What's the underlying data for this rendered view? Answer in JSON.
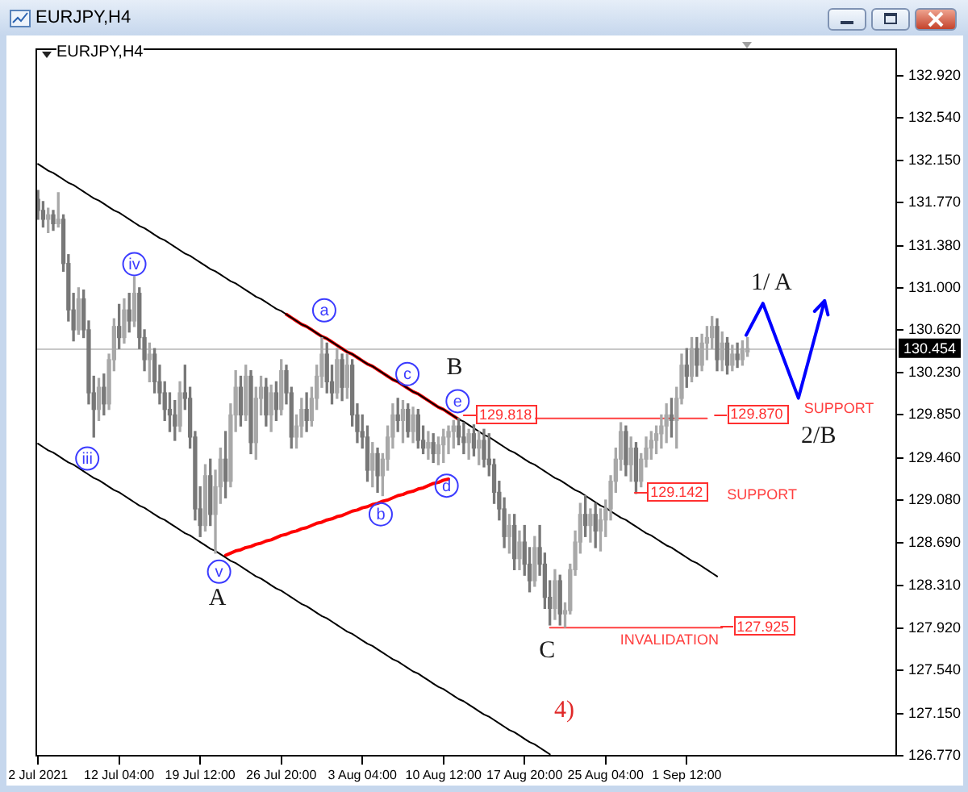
{
  "chart_data": {
    "type": "candlestick",
    "title": "EURJPY,H4",
    "subtitle": "EURJPY,H4",
    "categories": [
      "2 Jul 2021",
      null,
      null,
      null,
      null,
      null,
      null,
      null,
      null,
      null,
      null,
      null,
      null,
      null,
      null,
      null,
      "12 Jul 04:00",
      null,
      null,
      null,
      null,
      null,
      null,
      null,
      null,
      null,
      null,
      null,
      null,
      null,
      null,
      null,
      "19 Jul 12:00",
      null,
      null,
      null,
      null,
      null,
      null,
      null,
      null,
      null,
      null,
      null,
      null,
      null,
      null,
      null,
      "26 Jul 20:00",
      null,
      null,
      null,
      null,
      null,
      null,
      null,
      null,
      null,
      null,
      null,
      null,
      null,
      null,
      null,
      "3 Aug 04:00",
      null,
      null,
      null,
      null,
      null,
      null,
      null,
      null,
      null,
      null,
      null,
      null,
      null,
      null,
      null,
      "10 Aug 12:00",
      null,
      null,
      null,
      null,
      null,
      null,
      null,
      null,
      null,
      null,
      null,
      null,
      null,
      null,
      null,
      "17 Aug 20:00",
      null,
      null,
      null,
      null,
      null,
      null,
      null,
      null,
      null,
      null,
      null,
      null,
      null,
      null,
      null,
      "25 Aug 04:00",
      null,
      null,
      null,
      null,
      null,
      null,
      null,
      null,
      null,
      null,
      null,
      null,
      null,
      null,
      null,
      "1 Sep 12:00",
      null,
      null,
      null,
      null,
      null,
      null,
      null,
      null,
      null,
      null,
      null,
      null,
      null,
      null,
      null,
      null,
      null,
      null,
      null,
      null,
      null,
      null,
      null,
      null,
      null,
      null,
      null,
      null,
      null,
      null,
      null,
      null,
      null,
      null,
      null,
      null,
      null,
      null,
      null,
      null,
      null
    ],
    "ohlc": [
      [
        131.8,
        131.88,
        131.62,
        131.7
      ],
      [
        131.7,
        131.78,
        131.55,
        131.62
      ],
      [
        131.62,
        131.72,
        131.5,
        131.66
      ],
      [
        131.66,
        131.7,
        131.52,
        131.58
      ],
      [
        131.58,
        131.86,
        131.55,
        131.62
      ],
      [
        131.62,
        131.66,
        131.15,
        131.22
      ],
      [
        131.22,
        131.3,
        130.7,
        130.8
      ],
      [
        130.8,
        130.95,
        130.52,
        130.62
      ],
      [
        130.62,
        131.0,
        130.58,
        130.9
      ],
      [
        130.9,
        130.98,
        130.55,
        130.62
      ],
      [
        130.62,
        130.7,
        129.95,
        130.05
      ],
      [
        130.05,
        130.2,
        129.65,
        129.9
      ],
      [
        129.9,
        130.18,
        129.8,
        130.1
      ],
      [
        130.1,
        130.22,
        129.85,
        129.95
      ],
      [
        129.95,
        130.4,
        129.9,
        130.35
      ],
      [
        130.35,
        130.72,
        130.25,
        130.65
      ],
      [
        130.65,
        130.85,
        130.45,
        130.55
      ],
      [
        130.55,
        130.9,
        130.5,
        130.8
      ],
      [
        130.8,
        130.95,
        130.6,
        130.7
      ],
      [
        130.7,
        131.1,
        130.65,
        130.95
      ],
      [
        130.95,
        131.0,
        130.45,
        130.55
      ],
      [
        130.55,
        130.62,
        130.25,
        130.35
      ],
      [
        130.35,
        130.5,
        130.15,
        130.4
      ],
      [
        130.4,
        130.45,
        130.05,
        130.15
      ],
      [
        130.15,
        130.3,
        129.95,
        130.05
      ],
      [
        130.05,
        130.15,
        129.8,
        129.9
      ],
      [
        129.9,
        130.05,
        129.7,
        129.85
      ],
      [
        129.85,
        129.98,
        129.62,
        129.75
      ],
      [
        129.75,
        130.15,
        129.7,
        130.05
      ],
      [
        130.05,
        130.3,
        129.9,
        130.0
      ],
      [
        130.0,
        130.1,
        129.55,
        129.65
      ],
      [
        129.65,
        129.7,
        128.9,
        129.0
      ],
      [
        129.0,
        129.2,
        128.75,
        128.85
      ],
      [
        128.85,
        129.4,
        128.8,
        129.3
      ],
      [
        129.3,
        129.45,
        128.85,
        128.95
      ],
      [
        128.95,
        129.35,
        128.6,
        129.2
      ],
      [
        129.2,
        129.55,
        129.05,
        129.45
      ],
      [
        129.45,
        129.7,
        129.1,
        129.25
      ],
      [
        129.25,
        129.95,
        129.2,
        129.85
      ],
      [
        129.85,
        130.25,
        129.7,
        130.1
      ],
      [
        130.1,
        130.2,
        129.75,
        129.85
      ],
      [
        129.85,
        130.3,
        129.8,
        130.2
      ],
      [
        130.2,
        130.25,
        129.5,
        129.6
      ],
      [
        129.6,
        130.1,
        129.45,
        130.0
      ],
      [
        130.0,
        130.2,
        129.85,
        130.1
      ],
      [
        130.1,
        130.18,
        129.75,
        129.85
      ],
      [
        129.85,
        130.12,
        129.7,
        130.05
      ],
      [
        130.05,
        130.15,
        129.8,
        129.9
      ],
      [
        129.9,
        130.35,
        129.85,
        130.25
      ],
      [
        130.25,
        130.3,
        129.95,
        130.05
      ],
      [
        130.05,
        130.1,
        129.55,
        129.65
      ],
      [
        129.65,
        129.85,
        129.55,
        129.75
      ],
      [
        129.75,
        130.0,
        129.65,
        129.9
      ],
      [
        129.9,
        130.05,
        129.7,
        129.8
      ],
      [
        129.8,
        130.1,
        129.75,
        130.0
      ],
      [
        130.0,
        130.3,
        129.9,
        130.2
      ],
      [
        130.2,
        130.55,
        130.1,
        130.4
      ],
      [
        130.4,
        130.5,
        130.05,
        130.15
      ],
      [
        130.15,
        130.3,
        129.95,
        130.05
      ],
      [
        130.05,
        130.45,
        130.0,
        130.35
      ],
      [
        130.35,
        130.4,
        129.98,
        130.1
      ],
      [
        130.1,
        130.4,
        130.0,
        130.3
      ],
      [
        130.3,
        130.35,
        129.75,
        129.85
      ],
      [
        129.85,
        129.95,
        129.6,
        129.7
      ],
      [
        129.7,
        129.85,
        129.55,
        129.65
      ],
      [
        129.65,
        129.75,
        129.25,
        129.35
      ],
      [
        129.35,
        129.6,
        129.2,
        129.5
      ],
      [
        129.5,
        129.55,
        129.15,
        129.3
      ],
      [
        129.3,
        129.5,
        129.12,
        129.45
      ],
      [
        129.45,
        129.75,
        129.35,
        129.65
      ],
      [
        129.65,
        129.95,
        129.55,
        129.85
      ],
      [
        129.85,
        130.0,
        129.7,
        129.8
      ],
      [
        129.8,
        129.98,
        129.6,
        129.9
      ],
      [
        129.9,
        129.95,
        129.65,
        129.7
      ],
      [
        129.7,
        129.92,
        129.6,
        129.85
      ],
      [
        129.85,
        129.9,
        129.55,
        129.62
      ],
      [
        129.62,
        129.75,
        129.5,
        129.55
      ],
      [
        129.55,
        129.7,
        129.45,
        129.6
      ],
      [
        129.6,
        129.68,
        129.42,
        129.5
      ],
      [
        129.5,
        129.65,
        129.4,
        129.58
      ],
      [
        129.58,
        129.72,
        129.42,
        129.65
      ],
      [
        129.65,
        129.75,
        129.5,
        129.7
      ],
      [
        129.7,
        129.8,
        129.55,
        129.75
      ],
      [
        129.75,
        129.82,
        129.58,
        129.65
      ],
      [
        129.65,
        129.78,
        129.5,
        129.6
      ],
      [
        129.6,
        129.72,
        129.45,
        129.68
      ],
      [
        129.68,
        129.76,
        129.48,
        129.55
      ],
      [
        129.55,
        129.7,
        129.4,
        129.62
      ],
      [
        129.62,
        129.72,
        129.38,
        129.45
      ],
      [
        129.45,
        129.68,
        129.3,
        129.4
      ],
      [
        129.4,
        129.45,
        129.05,
        129.15
      ],
      [
        129.15,
        129.25,
        128.9,
        129.0
      ],
      [
        129.0,
        129.1,
        128.65,
        128.75
      ],
      [
        128.75,
        128.95,
        128.6,
        128.85
      ],
      [
        128.85,
        128.95,
        128.45,
        128.55
      ],
      [
        128.55,
        128.8,
        128.45,
        128.7
      ],
      [
        128.7,
        128.85,
        128.4,
        128.5
      ],
      [
        128.5,
        128.65,
        128.25,
        128.35
      ],
      [
        128.35,
        128.75,
        128.3,
        128.65
      ],
      [
        128.65,
        128.85,
        128.4,
        128.5
      ],
      [
        128.5,
        128.6,
        128.1,
        128.2
      ],
      [
        128.2,
        128.35,
        127.95,
        128.1
      ],
      [
        128.1,
        128.45,
        128.0,
        128.35
      ],
      [
        128.35,
        128.4,
        127.95,
        128.05
      ],
      [
        128.05,
        128.15,
        127.93,
        128.08
      ],
      [
        128.08,
        128.5,
        128.05,
        128.45
      ],
      [
        128.45,
        128.8,
        128.4,
        128.7
      ],
      [
        128.7,
        129.05,
        128.6,
        128.95
      ],
      [
        128.95,
        129.12,
        128.75,
        128.85
      ],
      [
        128.85,
        129.0,
        128.7,
        128.95
      ],
      [
        128.95,
        129.05,
        128.65,
        128.8
      ],
      [
        128.8,
        129.0,
        128.62,
        128.9
      ],
      [
        128.9,
        129.08,
        128.75,
        129.0
      ],
      [
        129.0,
        129.3,
        128.9,
        129.25
      ],
      [
        129.25,
        129.55,
        129.15,
        129.45
      ],
      [
        129.45,
        129.78,
        129.35,
        129.7
      ],
      [
        129.7,
        129.75,
        129.3,
        129.4
      ],
      [
        129.4,
        129.65,
        129.25,
        129.55
      ],
      [
        129.55,
        129.6,
        129.14,
        129.25
      ],
      [
        129.25,
        129.5,
        129.2,
        129.45
      ],
      [
        129.45,
        129.65,
        129.38,
        129.55
      ],
      [
        129.55,
        129.7,
        129.45,
        129.62
      ],
      [
        129.62,
        129.75,
        129.5,
        129.68
      ],
      [
        129.68,
        129.85,
        129.55,
        129.75
      ],
      [
        129.75,
        129.95,
        129.6,
        129.85
      ],
      [
        129.85,
        130.0,
        129.65,
        129.8
      ],
      [
        129.8,
        130.1,
        129.55,
        130.0
      ],
      [
        130.0,
        130.4,
        129.95,
        130.3
      ],
      [
        130.3,
        130.45,
        130.1,
        130.2
      ],
      [
        130.2,
        130.55,
        130.15,
        130.45
      ],
      [
        130.45,
        130.55,
        130.2,
        130.3
      ],
      [
        130.3,
        130.58,
        130.25,
        130.5
      ],
      [
        130.5,
        130.65,
        130.35,
        130.55
      ],
      [
        130.55,
        130.74,
        130.45,
        130.65
      ],
      [
        130.65,
        130.72,
        130.25,
        130.35
      ],
      [
        130.35,
        130.6,
        130.25,
        130.5
      ],
      [
        130.5,
        130.55,
        130.22,
        130.3
      ],
      [
        130.3,
        130.48,
        130.25,
        130.4
      ],
      [
        130.4,
        130.5,
        130.28,
        130.35
      ],
      [
        130.35,
        130.52,
        130.3,
        130.45
      ],
      [
        130.42,
        130.55,
        130.38,
        130.45
      ],
      null,
      null,
      null,
      null,
      null,
      null,
      null,
      null,
      null,
      null,
      null,
      null,
      null,
      null,
      null,
      null,
      null,
      null,
      null,
      null,
      null,
      null,
      null,
      null,
      null,
      null,
      null,
      null,
      null
    ],
    "colors": [
      "#787878",
      "#787878",
      "#a8a8a8",
      "#787878",
      "#a8a8a8",
      "#787878",
      "#787878",
      "#787878",
      "#a8a8a8",
      "#787878",
      "#787878",
      "#787878",
      "#a8a8a8",
      "#787878",
      "#a8a8a8",
      "#a8a8a8",
      "#787878",
      "#a8a8a8",
      "#787878",
      "#a8a8a8",
      "#787878",
      "#787878",
      "#a8a8a8",
      "#787878",
      "#787878",
      "#787878",
      "#787878",
      "#787878",
      "#a8a8a8",
      "#787878",
      "#787878",
      "#787878",
      "#787878",
      "#a8a8a8",
      "#787878",
      "#a8a8a8",
      "#a8a8a8",
      "#787878",
      "#a8a8a8",
      "#a8a8a8",
      "#787878",
      "#a8a8a8",
      "#787878",
      "#a8a8a8",
      "#a8a8a8",
      "#787878",
      "#a8a8a8",
      "#787878",
      "#a8a8a8",
      "#787878",
      "#787878",
      "#a8a8a8",
      "#a8a8a8",
      "#787878",
      "#a8a8a8",
      "#a8a8a8",
      "#a8a8a8",
      "#787878",
      "#787878",
      "#a8a8a8",
      "#787878",
      "#a8a8a8",
      "#787878",
      "#787878",
      "#787878",
      "#787878",
      "#a8a8a8",
      "#787878",
      "#a8a8a8",
      "#a8a8a8",
      "#a8a8a8",
      "#787878",
      "#a8a8a8",
      "#787878",
      "#a8a8a8",
      "#787878",
      "#787878",
      "#a8a8a8",
      "#787878",
      "#a8a8a8",
      "#a8a8a8",
      "#a8a8a8",
      "#a8a8a8",
      "#787878",
      "#787878",
      "#a8a8a8",
      "#787878",
      "#a8a8a8",
      "#787878",
      "#787878",
      "#787878",
      "#787878",
      "#787878",
      "#a8a8a8",
      "#787878",
      "#a8a8a8",
      "#787878",
      "#787878",
      "#a8a8a8",
      "#787878",
      "#787878",
      "#787878",
      "#a8a8a8",
      "#787878",
      "#a8a8a8",
      "#a8a8a8",
      "#a8a8a8",
      "#a8a8a8",
      "#787878",
      "#a8a8a8",
      "#787878",
      "#a8a8a8",
      "#a8a8a8",
      "#a8a8a8",
      "#a8a8a8",
      "#a8a8a8",
      "#787878",
      "#a8a8a8",
      "#787878",
      "#a8a8a8",
      "#a8a8a8",
      "#a8a8a8",
      "#a8a8a8",
      "#a8a8a8",
      "#a8a8a8",
      "#787878",
      "#a8a8a8",
      "#a8a8a8",
      "#787878",
      "#a8a8a8",
      "#787878",
      "#a8a8a8",
      "#a8a8a8",
      "#a8a8a8",
      "#787878",
      "#a8a8a8",
      "#787878",
      "#a8a8a8",
      "#787878",
      "#a8a8a8",
      "#a8a8a8",
      null,
      null,
      null,
      null,
      null,
      null,
      null,
      null,
      null,
      null,
      null,
      null,
      null,
      null,
      null,
      null,
      null,
      null,
      null,
      null,
      null,
      null,
      null,
      null,
      null,
      null,
      null,
      null,
      null
    ],
    "series": [
      {
        "type": "line",
        "color": "#000000",
        "values": [
          132.12,
          132.09,
          132.06,
          132.04,
          132.01,
          131.98,
          131.95,
          131.93,
          131.9,
          131.87,
          131.84,
          131.81,
          131.79,
          131.76,
          131.73,
          131.7,
          131.68,
          131.65,
          131.62,
          131.59,
          131.56,
          131.54,
          131.51,
          131.48,
          131.45,
          131.43,
          131.4,
          131.37,
          131.34,
          131.31,
          131.29,
          131.26,
          131.23,
          131.2,
          131.17,
          131.15,
          131.12,
          131.09,
          131.06,
          131.04,
          131.01,
          130.98,
          130.95,
          130.92,
          130.9,
          130.87,
          130.84,
          130.81,
          130.79,
          130.76,
          130.73,
          130.7,
          130.67,
          130.65,
          130.62,
          130.59,
          130.56,
          130.54,
          130.51,
          130.48,
          130.45,
          130.42,
          130.4,
          130.37,
          130.34,
          130.31,
          130.29,
          130.26,
          130.23,
          130.2,
          130.17,
          130.15,
          130.12,
          130.09,
          130.06,
          130.04,
          130.01,
          129.98,
          129.95,
          129.92,
          129.9,
          129.87,
          129.84,
          129.81,
          129.79,
          129.76,
          129.73,
          129.7,
          129.67,
          129.65,
          129.62,
          129.59,
          129.56,
          129.53,
          129.51,
          129.48,
          129.45,
          129.42,
          129.4,
          129.37,
          129.34,
          129.31,
          129.28,
          129.26,
          129.23,
          129.2,
          129.17,
          129.15,
          129.12,
          129.09,
          129.06,
          129.03,
          129.01,
          128.98,
          128.95,
          128.92,
          128.9,
          128.87,
          128.84,
          128.81,
          128.78,
          128.76,
          128.73,
          128.7,
          128.67,
          128.65,
          128.62,
          128.59,
          128.56,
          128.53,
          128.51,
          128.48,
          128.45,
          128.42,
          128.39,
          null,
          null,
          null,
          null,
          null,
          null,
          null,
          null,
          null,
          null,
          null,
          null,
          null,
          null,
          null,
          null,
          null,
          null,
          null,
          null,
          null,
          null,
          null,
          null,
          null,
          null,
          null,
          null,
          null,
          null,
          null,
          null,
          null,
          null,
          null
        ]
      },
      {
        "type": "line",
        "color": "#000000",
        "values": [
          129.59,
          129.56,
          129.53,
          129.51,
          129.48,
          129.45,
          129.42,
          129.4,
          129.37,
          129.34,
          129.31,
          129.28,
          129.26,
          129.23,
          129.2,
          129.17,
          129.15,
          129.12,
          129.09,
          129.06,
          129.03,
          129.01,
          128.98,
          128.95,
          128.92,
          128.9,
          128.87,
          128.84,
          128.81,
          128.78,
          128.76,
          128.73,
          128.7,
          128.67,
          128.64,
          128.62,
          128.59,
          128.56,
          128.53,
          128.51,
          128.48,
          128.45,
          128.42,
          128.39,
          128.37,
          128.34,
          128.31,
          128.28,
          128.26,
          128.23,
          128.2,
          128.17,
          128.14,
          128.12,
          128.09,
          128.06,
          128.03,
          128.01,
          127.98,
          127.95,
          127.92,
          127.89,
          127.87,
          127.84,
          127.81,
          127.78,
          127.76,
          127.73,
          127.7,
          127.67,
          127.64,
          127.62,
          127.59,
          127.56,
          127.53,
          127.51,
          127.48,
          127.45,
          127.42,
          127.39,
          127.37,
          127.34,
          127.31,
          127.28,
          127.26,
          127.23,
          127.2,
          127.17,
          127.14,
          127.12,
          127.09,
          127.06,
          127.03,
          127.0,
          126.98,
          126.95,
          126.92,
          126.89,
          126.87,
          126.84,
          126.81,
          126.78,
          null,
          null,
          null,
          null,
          null,
          null,
          null,
          null,
          null,
          null,
          null,
          null,
          null,
          null,
          null,
          null,
          null,
          null,
          null,
          null,
          null,
          null,
          null,
          null,
          null,
          null,
          null,
          null,
          null,
          null,
          null,
          null,
          null,
          null,
          null,
          null,
          null,
          null,
          null,
          null,
          null,
          null,
          null,
          null,
          null,
          null,
          null,
          null,
          null,
          null,
          null,
          null,
          null,
          null,
          null,
          null,
          null,
          null,
          null,
          null,
          null,
          null,
          null,
          null,
          null,
          null,
          null,
          null
        ]
      },
      {
        "type": "line",
        "color": "#ff0000",
        "values": [
          null,
          null,
          null,
          null,
          null,
          null,
          null,
          null,
          null,
          null,
          null,
          null,
          null,
          null,
          null,
          null,
          null,
          null,
          null,
          null,
          null,
          null,
          null,
          null,
          null,
          null,
          null,
          null,
          null,
          null,
          null,
          null,
          null,
          null,
          null,
          null,
          null,
          null,
          null,
          null,
          null,
          null,
          null,
          null,
          null,
          null,
          null,
          null,
          null,
          130.76,
          130.73,
          130.7,
          130.67,
          130.65,
          130.62,
          130.59,
          130.56,
          130.54,
          130.51,
          130.48,
          130.45,
          130.42,
          130.4,
          130.37,
          130.34,
          130.31,
          130.29,
          130.26,
          130.23,
          130.2,
          130.17,
          130.15,
          130.12,
          130.09,
          130.06,
          130.04,
          130.01,
          129.98,
          129.95,
          129.92,
          129.9,
          129.87,
          129.84,
          129.81,
          null,
          null,
          null,
          null,
          null,
          null,
          null,
          null,
          null,
          null,
          null,
          null,
          null,
          null,
          null,
          null,
          null,
          null,
          null,
          null,
          null,
          null,
          null,
          null,
          null,
          null,
          null,
          null,
          null,
          null,
          null,
          null,
          null,
          null,
          null,
          null,
          null,
          null,
          null,
          null,
          null,
          null,
          null,
          null,
          null,
          null,
          null,
          null,
          null,
          null,
          null,
          null,
          null,
          null,
          null,
          null,
          null,
          null,
          null,
          null,
          null,
          null,
          null,
          null,
          null,
          null,
          null,
          null,
          null,
          null,
          null,
          null,
          null,
          null,
          null,
          null,
          null,
          null,
          null,
          null,
          null,
          null,
          null,
          null,
          null,
          null
        ]
      },
      {
        "type": "line",
        "color": "#ff0000",
        "values": [
          null,
          null,
          null,
          null,
          null,
          null,
          null,
          null,
          null,
          null,
          null,
          null,
          null,
          null,
          null,
          null,
          null,
          null,
          null,
          null,
          null,
          null,
          null,
          null,
          null,
          null,
          null,
          null,
          null,
          null,
          null,
          null,
          null,
          null,
          null,
          null,
          null,
          128.58,
          128.6,
          128.62,
          128.63,
          128.65,
          128.66,
          128.68,
          128.69,
          128.71,
          128.72,
          128.74,
          128.76,
          128.77,
          128.79,
          128.8,
          128.82,
          128.83,
          128.85,
          128.87,
          128.88,
          128.9,
          128.91,
          128.93,
          128.94,
          128.96,
          128.98,
          128.99,
          129.01,
          129.02,
          129.04,
          129.05,
          129.07,
          129.08,
          129.1,
          129.12,
          129.13,
          129.15,
          129.16,
          129.18,
          129.19,
          129.21,
          129.23,
          129.24,
          129.26,
          129.27,
          null,
          null,
          null,
          null,
          null,
          null,
          null,
          null,
          null,
          null,
          null,
          null,
          null,
          null,
          null,
          null,
          null,
          null,
          null,
          null,
          null,
          null,
          null,
          null,
          null,
          null,
          null,
          null,
          null,
          null,
          null,
          null,
          null,
          null,
          null,
          null,
          null,
          null,
          null,
          null,
          null,
          null,
          null,
          null,
          null,
          null,
          null,
          null,
          null,
          null,
          null,
          null,
          null,
          null,
          null,
          null,
          null,
          null,
          null,
          null,
          null,
          null,
          null,
          null,
          null,
          null,
          null,
          null,
          null,
          null,
          null,
          null,
          null,
          null,
          null,
          null,
          null,
          null,
          null,
          null,
          null,
          null,
          null,
          null,
          null,
          null,
          null,
          null
        ]
      },
      {
        "type": "line",
        "color": "#ff4040",
        "values": [
          null,
          null,
          null,
          null,
          null,
          null,
          null,
          null,
          null,
          null,
          null,
          null,
          null,
          null,
          null,
          null,
          null,
          null,
          null,
          null,
          null,
          null,
          null,
          null,
          null,
          null,
          null,
          null,
          null,
          null,
          null,
          null,
          null,
          null,
          null,
          null,
          null,
          null,
          null,
          null,
          null,
          null,
          null,
          null,
          null,
          null,
          null,
          null,
          null,
          null,
          null,
          null,
          null,
          null,
          null,
          null,
          null,
          null,
          null,
          null,
          null,
          null,
          null,
          null,
          null,
          null,
          null,
          null,
          null,
          null,
          null,
          null,
          null,
          null,
          null,
          null,
          null,
          null,
          null,
          null,
          null,
          null,
          null,
          null,
          null,
          null,
          null,
          null,
          null,
          null,
          null,
          null,
          null,
          null,
          null,
          null,
          null,
          null,
          129.818,
          129.818,
          129.818,
          129.818,
          129.818,
          129.818,
          129.818,
          129.818,
          129.818,
          129.818,
          129.818,
          129.818,
          129.818,
          129.818,
          129.818,
          129.818,
          129.818,
          129.818,
          129.818,
          129.818,
          129.818,
          129.818,
          129.818,
          129.818,
          129.818,
          129.818,
          129.818,
          129.818,
          129.818,
          129.818,
          129.818,
          129.818,
          129.818,
          129.818,
          129.818,
          null,
          null,
          null,
          null,
          null,
          null,
          null,
          null,
          null,
          null,
          null,
          null,
          null,
          null,
          null,
          null,
          null,
          null,
          null,
          null,
          null,
          null,
          null,
          null,
          null,
          null,
          null,
          null,
          null,
          null,
          null,
          null,
          null,
          null,
          null,
          null,
          null
        ]
      },
      {
        "type": "line",
        "color": "#ff4040",
        "values": [
          null,
          null,
          null,
          null,
          null,
          null,
          null,
          null,
          null,
          null,
          null,
          null,
          null,
          null,
          null,
          null,
          null,
          null,
          null,
          null,
          null,
          null,
          null,
          null,
          null,
          null,
          null,
          null,
          null,
          null,
          null,
          null,
          null,
          null,
          null,
          null,
          null,
          null,
          null,
          null,
          null,
          null,
          null,
          null,
          null,
          null,
          null,
          null,
          null,
          null,
          null,
          null,
          null,
          null,
          null,
          null,
          null,
          null,
          null,
          null,
          null,
          null,
          null,
          null,
          null,
          null,
          null,
          null,
          null,
          null,
          null,
          null,
          null,
          null,
          null,
          null,
          null,
          null,
          null,
          null,
          null,
          null,
          null,
          null,
          null,
          null,
          null,
          null,
          null,
          null,
          null,
          null,
          null,
          null,
          null,
          null,
          null,
          null,
          null,
          null,
          null,
          127.925,
          127.925,
          127.925,
          127.925,
          127.925,
          127.925,
          127.925,
          127.925,
          127.925,
          127.925,
          127.925,
          127.925,
          127.925,
          127.925,
          127.925,
          127.925,
          127.925,
          127.925,
          127.925,
          127.925,
          127.925,
          127.925,
          127.925,
          127.925,
          127.925,
          127.925,
          127.925,
          127.925,
          127.925,
          127.925,
          127.925,
          127.925,
          127.925,
          127.925,
          127.925,
          null,
          null,
          null,
          null,
          null,
          null,
          null,
          null,
          null,
          null,
          null,
          null,
          null,
          null,
          null,
          null,
          null,
          null,
          null,
          null,
          null,
          null,
          null,
          null,
          null,
          null,
          null,
          null,
          null,
          null,
          null,
          null,
          null,
          null
        ]
      }
    ],
    "ref_lines": [
      {
        "axis": "y",
        "value": 130.454,
        "label": "130.454",
        "color": "#c8c8c8"
      }
    ],
    "annotations": [
      "iii",
      "iv",
      "v",
      "a",
      "b",
      "c",
      "d",
      "e",
      "A",
      "B",
      "C",
      "1/ A",
      "2/B",
      "4)",
      "SUPPORT",
      "SUPPORT",
      "INVALIDATION",
      "129.818",
      "129.870",
      "129.142",
      "127.925"
    ],
    "ylim": [
      126.76,
      133.16
    ],
    "yticks": [
      {
        "value": 132.92,
        "label": "132.920"
      },
      {
        "value": 132.54,
        "label": "132.540"
      },
      {
        "value": 132.15,
        "label": "132.150"
      },
      {
        "value": 131.77,
        "label": "131.770"
      },
      {
        "value": 131.38,
        "label": "131.380"
      },
      {
        "value": 131,
        "label": "131.000"
      },
      {
        "value": 130.62,
        "label": "130.620"
      },
      {
        "value": 130.23,
        "label": "130.230"
      },
      {
        "value": 129.85,
        "label": "129.850"
      },
      {
        "value": 129.46,
        "label": "129.460"
      },
      {
        "value": 129.08,
        "label": "129.080"
      },
      {
        "value": 128.69,
        "label": "128.690"
      },
      {
        "value": 128.31,
        "label": "128.310"
      },
      {
        "value": 127.92,
        "label": "127.920"
      },
      {
        "value": 127.54,
        "label": "127.540"
      },
      {
        "value": 127.15,
        "label": "127.150"
      },
      {
        "value": 126.77,
        "label": "126.770"
      }
    ]
  }
}
